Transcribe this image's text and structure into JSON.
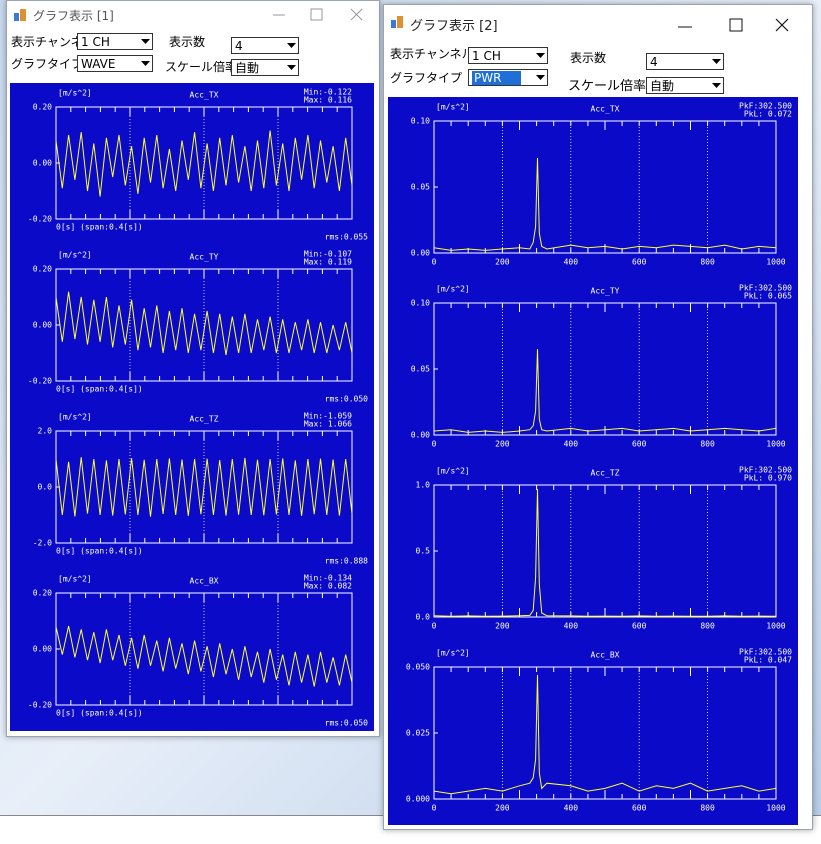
{
  "windows": [
    {
      "title": "グラフ表示 [1]",
      "controls": [
        {
          "label": "表示チャンネル",
          "value": "1 CH"
        },
        {
          "label": "表示数",
          "value": "4"
        },
        {
          "label": "グラフタイプ",
          "value": "WAVE"
        },
        {
          "label": "スケール倍率",
          "value": "自動"
        }
      ],
      "charts": [
        {
          "type": "line",
          "title": "Acc_TX",
          "unit": "[m/s^2]",
          "color": "#ffff33",
          "ylim": [
            -0.2,
            0.2
          ],
          "yticks": [
            {
              "value": 0.2,
              "label": "0.20"
            },
            {
              "value": 0,
              "label": "0.00"
            },
            {
              "value": -0.2,
              "label": "-0.20"
            }
          ],
          "min_label": "Min:-0.122",
          "max_label": "Max: 0.116",
          "rms_label": "rms:0.055",
          "x_label": "0[s]  (span:0.4[s])",
          "values": [
            0.08,
            -0.09,
            0.1,
            -0.06,
            0.11,
            -0.1,
            0.07,
            -0.12,
            0.09,
            -0.05,
            0.1,
            -0.08,
            0.06,
            -0.11,
            0.09,
            -0.07,
            0.1,
            -0.09,
            0.05,
            -0.1,
            0.08,
            -0.06,
            0.11,
            -0.09,
            0.07,
            -0.1,
            0.09,
            -0.08,
            0.1,
            -0.07,
            0.06,
            -0.1,
            0.08,
            -0.09,
            0.116,
            -0.08,
            0.07,
            -0.1,
            0.09,
            -0.06,
            0.1,
            -0.09,
            0.08,
            -0.07,
            0.06,
            -0.1,
            0.09,
            -0.08
          ]
        },
        {
          "type": "line",
          "title": "Acc_TY",
          "unit": "[m/s^2]",
          "color": "#ffff33",
          "ylim": [
            -0.2,
            0.2
          ],
          "yticks": [
            {
              "value": 0.2,
              "label": "0.20"
            },
            {
              "value": 0,
              "label": "0.00"
            },
            {
              "value": -0.2,
              "label": "-0.20"
            }
          ],
          "min_label": "Min:-0.107",
          "max_label": "Max: 0.119",
          "rms_label": "rms:0.050",
          "x_label": "0[s]  (span:0.4[s])",
          "values": [
            0.1,
            -0.06,
            0.119,
            -0.05,
            0.1,
            -0.07,
            0.09,
            -0.06,
            0.1,
            -0.08,
            0.07,
            -0.07,
            0.09,
            -0.09,
            0.06,
            -0.08,
            0.07,
            -0.1,
            0.05,
            -0.09,
            0.06,
            -0.1,
            0.04,
            -0.09,
            0.05,
            -0.1,
            0.04,
            -0.107,
            0.03,
            -0.1,
            0.04,
            -0.1,
            0.02,
            -0.09,
            0.03,
            -0.1,
            0.02,
            -0.1,
            0.01,
            -0.09,
            0.02,
            -0.1,
            0.01,
            -0.1,
            0.0,
            -0.09,
            0.01,
            -0.1
          ]
        },
        {
          "type": "line",
          "title": "Acc_TZ",
          "unit": "[m/s^2]",
          "color": "#ffff33",
          "ylim": [
            -2,
            2
          ],
          "yticks": [
            {
              "value": 2,
              "label": "2.0"
            },
            {
              "value": 0,
              "label": "0.0"
            },
            {
              "value": -2,
              "label": "-2.0"
            }
          ],
          "min_label": "Min:-1.059",
          "max_label": "Max: 1.066",
          "rms_label": "rms:0.888",
          "x_label": "0[s]  (span:0.4[s])",
          "values": [
            1.0,
            -1.0,
            0.9,
            -1.05,
            1.066,
            -0.95,
            1.0,
            -1.0,
            0.95,
            -1.02,
            1.0,
            -0.98,
            1.03,
            -1.0,
            0.97,
            -1.059,
            1.0,
            -0.96,
            1.02,
            -1.0,
            0.98,
            -1.03,
            1.0,
            -0.97,
            1.01,
            -1.0,
            0.96,
            -1.02,
            1.0,
            -0.99,
            1.04,
            -1.0,
            0.97,
            -1.01,
            1.0,
            -0.98,
            1.02,
            -1.0,
            0.95,
            -1.03,
            1.0,
            -0.97,
            1.01,
            -1.0,
            0.98,
            -1.02,
            1.0,
            -0.96
          ]
        },
        {
          "type": "line",
          "title": "Acc_BX",
          "unit": "[m/s^2]",
          "color": "#ffff33",
          "ylim": [
            -0.2,
            0.2
          ],
          "yticks": [
            {
              "value": 0.2,
              "label": "0.20"
            },
            {
              "value": 0,
              "label": "0.00"
            },
            {
              "value": -0.2,
              "label": "-0.20"
            }
          ],
          "min_label": "Min:-0.134",
          "max_label": "Max: 0.082",
          "rms_label": "rms:0.050",
          "x_label": "0[s]  (span:0.4[s])",
          "values": [
            0.08,
            -0.02,
            0.082,
            -0.03,
            0.07,
            -0.04,
            0.06,
            -0.05,
            0.07,
            -0.04,
            0.05,
            -0.06,
            0.04,
            -0.07,
            0.05,
            -0.06,
            0.03,
            -0.08,
            0.04,
            -0.07,
            0.02,
            -0.09,
            0.03,
            -0.08,
            0.01,
            -0.1,
            0.02,
            -0.09,
            0.0,
            -0.11,
            0.01,
            -0.1,
            -0.01,
            -0.12,
            0.0,
            -0.11,
            -0.02,
            -0.13,
            -0.01,
            -0.12,
            -0.02,
            -0.134,
            -0.01,
            -0.12,
            -0.03,
            -0.13,
            -0.02,
            -0.12
          ]
        }
      ]
    },
    {
      "title": "グラフ表示 [2]",
      "controls": [
        {
          "label": "表示チャンネル",
          "value": "1 CH"
        },
        {
          "label": "表示数",
          "value": "4"
        },
        {
          "label": "グラフタイプ",
          "value": "PWR"
        },
        {
          "label": "スケール倍率",
          "value": "自動"
        }
      ],
      "charts": [
        {
          "type": "line",
          "title": "Acc_TX",
          "unit": "[m/s^2]",
          "color": "#ffff33",
          "grid": true,
          "xlim": [
            0,
            1000
          ],
          "xticks": [
            0,
            200,
            400,
            600,
            800,
            1000
          ],
          "ylim": [
            0,
            0.1
          ],
          "yticks": [
            {
              "value": 0.1,
              "label": "0.10"
            },
            {
              "value": 0.05,
              "label": "0.05"
            },
            {
              "value": 0,
              "label": "0.00"
            }
          ],
          "peak_freq_label": "PkF:302.500",
          "peak_level_label": "PkL:  0.072",
          "x": [
            0,
            50,
            100,
            150,
            200,
            250,
            280,
            290,
            297,
            302.5,
            308,
            315,
            330,
            400,
            450,
            500,
            550,
            600,
            650,
            700,
            750,
            800,
            850,
            900,
            950,
            1000
          ],
          "values": [
            0.004,
            0.002,
            0.003,
            0.002,
            0.003,
            0.004,
            0.003,
            0.008,
            0.02,
            0.072,
            0.015,
            0.005,
            0.003,
            0.006,
            0.004,
            0.005,
            0.003,
            0.005,
            0.004,
            0.006,
            0.005,
            0.004,
            0.006,
            0.003,
            0.005,
            0.004
          ]
        },
        {
          "type": "line",
          "title": "Acc_TY",
          "unit": "[m/s^2]",
          "color": "#ffff33",
          "grid": true,
          "xlim": [
            0,
            1000
          ],
          "xticks": [
            0,
            200,
            400,
            600,
            800,
            1000
          ],
          "ylim": [
            0,
            0.1
          ],
          "yticks": [
            {
              "value": 0.1,
              "label": "0.10"
            },
            {
              "value": 0.05,
              "label": "0.05"
            },
            {
              "value": 0,
              "label": "0.00"
            }
          ],
          "peak_freq_label": "PkF:302.500",
          "peak_level_label": "PkL:  0.065",
          "x": [
            0,
            50,
            100,
            150,
            200,
            250,
            280,
            290,
            297,
            302.5,
            308,
            315,
            330,
            400,
            450,
            500,
            550,
            600,
            650,
            700,
            750,
            800,
            850,
            900,
            950,
            1000
          ],
          "values": [
            0.003,
            0.004,
            0.002,
            0.003,
            0.002,
            0.003,
            0.004,
            0.007,
            0.018,
            0.065,
            0.012,
            0.004,
            0.003,
            0.005,
            0.003,
            0.004,
            0.005,
            0.003,
            0.004,
            0.005,
            0.003,
            0.004,
            0.005,
            0.004,
            0.003,
            0.005
          ]
        },
        {
          "type": "line",
          "title": "Acc_TZ",
          "unit": "[m/s^2]",
          "color": "#ffff33",
          "grid": true,
          "xlim": [
            0,
            1000
          ],
          "xticks": [
            0,
            200,
            400,
            600,
            800,
            1000
          ],
          "ylim": [
            0,
            1
          ],
          "yticks": [
            {
              "value": 1,
              "label": "1.0"
            },
            {
              "value": 0.5,
              "label": "0.5"
            },
            {
              "value": 0,
              "label": "0.0"
            }
          ],
          "peak_freq_label": "PkF:302.500",
          "peak_level_label": "PkL:  0.970",
          "x": [
            0,
            50,
            100,
            150,
            200,
            250,
            280,
            290,
            297,
            302.5,
            308,
            315,
            330,
            400,
            450,
            500,
            550,
            600,
            650,
            700,
            750,
            800,
            850,
            900,
            950,
            1000
          ],
          "values": [
            0.01,
            0.005,
            0.008,
            0.006,
            0.007,
            0.009,
            0.012,
            0.05,
            0.3,
            0.97,
            0.25,
            0.03,
            0.01,
            0.008,
            0.006,
            0.007,
            0.005,
            0.008,
            0.006,
            0.007,
            0.005,
            0.006,
            0.008,
            0.005,
            0.007,
            0.006
          ]
        },
        {
          "type": "line",
          "title": "Acc_BX",
          "unit": "[m/s^2]",
          "color": "#ffff33",
          "grid": true,
          "xlim": [
            0,
            1000
          ],
          "xticks": [
            0,
            200,
            400,
            600,
            800,
            1000
          ],
          "ylim": [
            0,
            0.05
          ],
          "yticks": [
            {
              "value": 0.05,
              "label": "0.050"
            },
            {
              "value": 0.025,
              "label": "0.025"
            },
            {
              "value": 0,
              "label": "0.000"
            }
          ],
          "peak_freq_label": "PkF:302.500",
          "peak_level_label": "PkL:  0.047",
          "x": [
            0,
            50,
            100,
            150,
            200,
            250,
            280,
            290,
            297,
            302.5,
            308,
            315,
            330,
            400,
            450,
            500,
            550,
            600,
            650,
            700,
            750,
            800,
            850,
            900,
            950,
            1000
          ],
          "values": [
            0.003,
            0.002,
            0.003,
            0.004,
            0.003,
            0.005,
            0.006,
            0.008,
            0.015,
            0.047,
            0.01,
            0.004,
            0.006,
            0.005,
            0.003,
            0.004,
            0.006,
            0.003,
            0.005,
            0.004,
            0.006,
            0.003,
            0.004,
            0.005,
            0.003,
            0.004
          ]
        }
      ]
    }
  ]
}
